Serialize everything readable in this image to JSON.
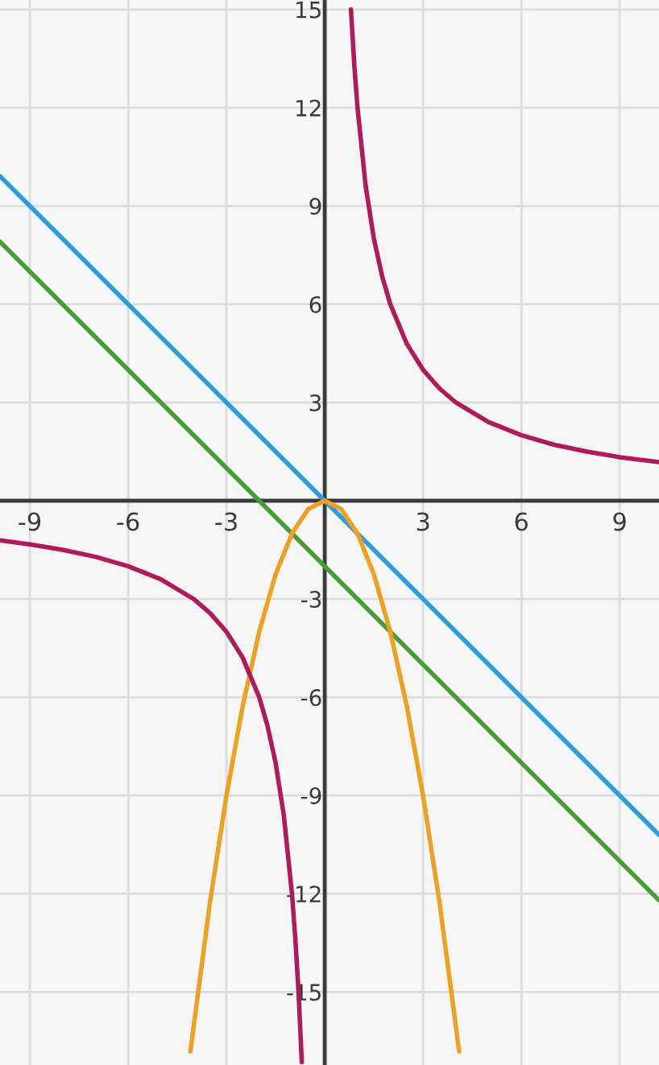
{
  "chart_data": {
    "type": "line",
    "xlim": [
      -9.91,
      10.2
    ],
    "ylim": [
      -17.23,
      15.29
    ],
    "xticks": [
      -9,
      -6,
      -3,
      3,
      6,
      9
    ],
    "yticks": [
      -15,
      -12,
      -9,
      -6,
      -3,
      3,
      6,
      9,
      12,
      15
    ],
    "grid": true,
    "marker": "none",
    "line_style": "solid",
    "series": [
      {
        "color": "#2f9be0",
        "x": [
          -9.91,
          10.2
        ],
        "values": [
          9.91,
          -10.2
        ]
      },
      {
        "color": "#4a9a3c",
        "x": [
          -9.91,
          10.2
        ],
        "values": [
          7.91,
          -12.2
        ]
      },
      {
        "color": "#f0a020",
        "x": [
          -4.1,
          -3.5,
          -3,
          -2.5,
          -2,
          -1.5,
          -1,
          -0.5,
          0,
          0.5,
          1,
          1.5,
          2,
          2.5,
          3,
          3.5,
          4.1
        ],
        "values": [
          -16.81,
          -12.25,
          -9,
          -6.25,
          -4,
          -2.25,
          -1,
          -0.25,
          0,
          -0.25,
          -1,
          -2.25,
          -4,
          -6.25,
          -9,
          -12.25,
          -16.81
        ]
      },
      {
        "color": "#b01a5a",
        "x": [
          -9.91,
          -9,
          -8,
          -7,
          -6,
          -5,
          -4,
          -3.5,
          -3,
          -2.5,
          -2,
          -1.75,
          -1.5,
          -1.25,
          -1,
          -0.9,
          -0.8,
          -0.7,
          0,
          0.8,
          0.9,
          1,
          1.25,
          1.5,
          1.75,
          2,
          2.5,
          3,
          3.5,
          4,
          5,
          6,
          7,
          8,
          9,
          10.2
        ],
        "values": [
          -1.21,
          -1.33,
          -1.5,
          -1.71,
          -2,
          -2.4,
          -3,
          -3.43,
          -4,
          -4.8,
          -6,
          -6.86,
          -8,
          -9.6,
          -12,
          -13.33,
          -15,
          -17.14,
          null,
          15,
          13.33,
          12,
          9.6,
          8,
          6.86,
          6,
          4.8,
          4,
          3.43,
          3,
          2.4,
          2,
          1.71,
          1.5,
          1.33,
          1.18
        ]
      }
    ]
  }
}
